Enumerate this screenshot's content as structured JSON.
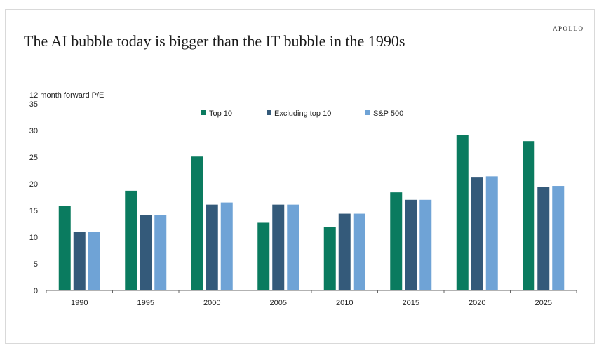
{
  "brand": "APOLLO",
  "chart_data": {
    "type": "bar",
    "title": "The AI bubble today is bigger than the IT bubble in the 1990s",
    "ylabel": "12 month forward P/E",
    "xlabel": "",
    "ylim": [
      0,
      35
    ],
    "yticks": [
      0,
      5,
      10,
      15,
      20,
      25,
      30,
      35
    ],
    "legend_position": "top-center",
    "categories": [
      "1990",
      "1995",
      "2000",
      "2005",
      "2010",
      "2015",
      "2020",
      "2025"
    ],
    "series": [
      {
        "name": "Top 10",
        "color": "#0a7b5f",
        "values": [
          15.8,
          18.7,
          25.1,
          12.7,
          11.9,
          18.4,
          29.2,
          28.0
        ]
      },
      {
        "name": "Excluding top 10",
        "color": "#345a7a",
        "values": [
          11.0,
          14.2,
          16.1,
          16.1,
          14.4,
          17.0,
          21.3,
          19.4
        ]
      },
      {
        "name": "S&P 500",
        "color": "#6fa3d6",
        "values": [
          11.0,
          14.2,
          16.5,
          16.1,
          14.4,
          17.0,
          21.4,
          19.6
        ]
      }
    ]
  }
}
